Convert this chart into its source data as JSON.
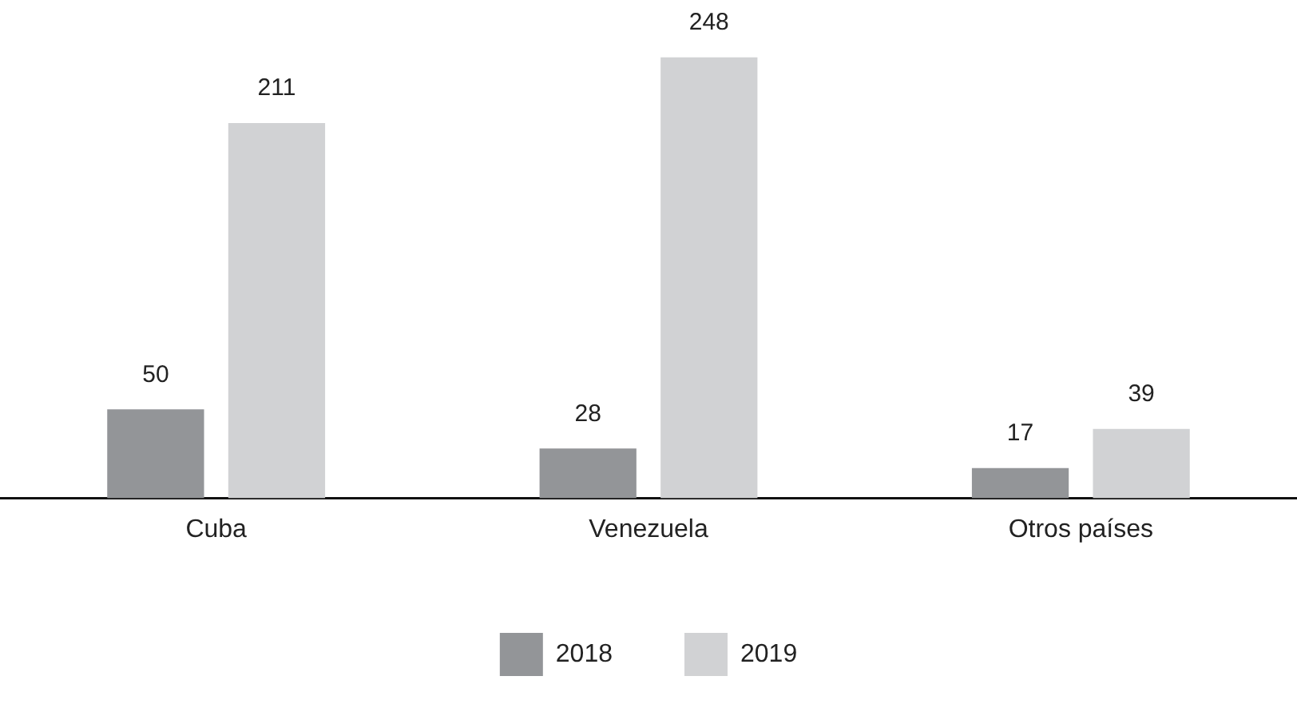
{
  "chart_data": {
    "type": "bar",
    "categories": [
      "Cuba",
      "Venezuela",
      "Otros países"
    ],
    "series": [
      {
        "name": "2018",
        "color": "#939598",
        "values": [
          50,
          28,
          17
        ]
      },
      {
        "name": "2019",
        "color": "#d1d2d4",
        "values": [
          211,
          248,
          39
        ]
      }
    ],
    "data_labels": true,
    "legend": "bottom",
    "grid": false
  }
}
